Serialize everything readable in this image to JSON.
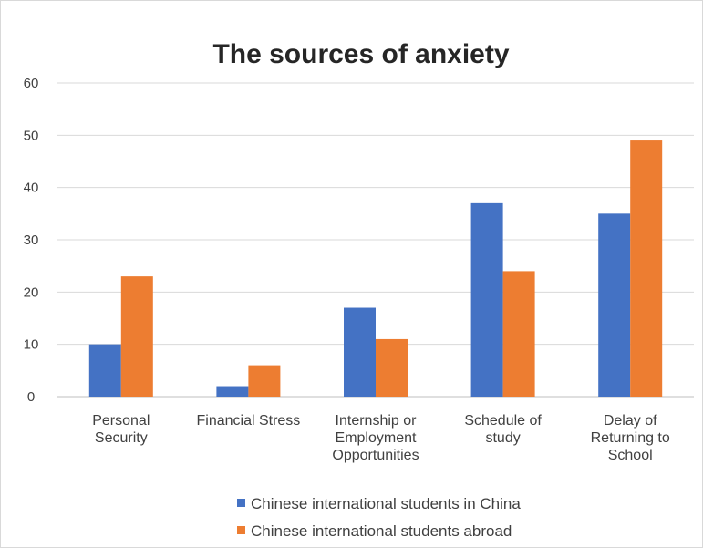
{
  "chart_data": {
    "type": "bar",
    "title": "The sources of anxiety",
    "xlabel": "",
    "ylabel": "",
    "ylim": [
      0,
      60
    ],
    "yticks": [
      0,
      10,
      20,
      30,
      40,
      50,
      60
    ],
    "grid": true,
    "legend_position": "bottom",
    "categories": [
      [
        "Personal",
        "Security"
      ],
      [
        "Financial Stress"
      ],
      [
        "Internship or",
        "Employment",
        "Opportunities"
      ],
      [
        "Schedule of",
        "study"
      ],
      [
        "Delay of",
        "Returning to",
        "School"
      ]
    ],
    "series": [
      {
        "name": "Chinese international students in China",
        "color": "#4472c4",
        "values": [
          10,
          2,
          17,
          37,
          35
        ]
      },
      {
        "name": "Chinese international students abroad",
        "color": "#ed7d31",
        "values": [
          23,
          6,
          11,
          24,
          49
        ]
      }
    ]
  }
}
